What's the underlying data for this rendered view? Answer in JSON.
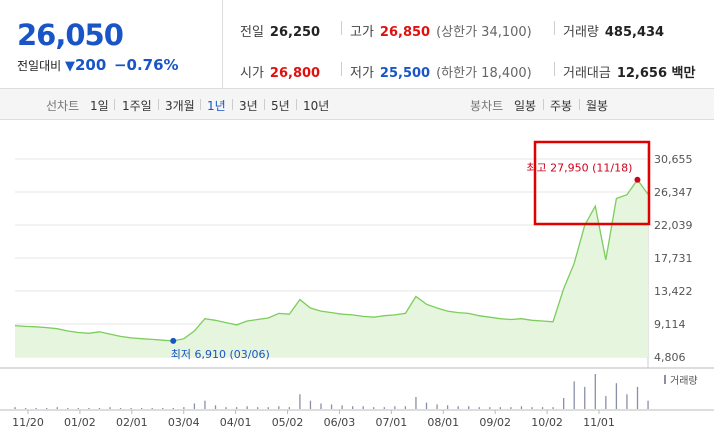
{
  "summary": {
    "price": "26,050",
    "change_label": "전일대비",
    "change_arrow": "▼",
    "change_value": "200",
    "change_pct": "−0.76%"
  },
  "stats": {
    "prev_close_label": "전일",
    "prev_close": "26,250",
    "high_label": "고가",
    "high": "26,850",
    "upper_limit": "(상한가 34,100)",
    "volume_label": "거래량",
    "volume": "485,434",
    "open_label": "시가",
    "open": "26,800",
    "low_label": "저가",
    "low": "25,500",
    "lower_limit": "(하한가 18,400)",
    "amount_label": "거래대금",
    "amount": "12,656 백만"
  },
  "tabs": {
    "line_label": "선차트",
    "line_periods": [
      "1일",
      "1주일",
      "3개월",
      "1년",
      "3년",
      "5년",
      "10년"
    ],
    "active_period": "1년",
    "candle_label": "봉차트",
    "candle_periods": [
      "일봉",
      "주봉",
      "월봉"
    ]
  },
  "colors": {
    "accent_blue": "#1a55c8",
    "up_red": "#e01010",
    "line_green": "#7ccd5c",
    "area_green": "#e6f5dd",
    "annotation_box": "#e00000"
  },
  "chart_data": {
    "type": "area",
    "title": "",
    "xlabel": "",
    "ylabel": "",
    "ylim": [
      4806,
      30655
    ],
    "y_ticks": [
      "30,655",
      "26,347",
      "22,039",
      "17,731",
      "13,422",
      "9,114",
      "4,806"
    ],
    "x_ticks": [
      "11/20",
      "01/02",
      "02/01",
      "03/04",
      "04/01",
      "05/02",
      "06/03",
      "07/01",
      "08/01",
      "09/02",
      "10/02",
      "11/01"
    ],
    "series": [
      {
        "values": [
          8900,
          8800,
          8750,
          8650,
          8500,
          8200,
          8000,
          7900,
          8100,
          7800,
          7500,
          7300,
          7200,
          7100,
          7000,
          6910,
          7200,
          8200,
          9800,
          9600,
          9300,
          9000,
          9500,
          9700,
          9900,
          10500,
          10400,
          12300,
          11200,
          10800,
          10600,
          10400,
          10300,
          10100,
          10000,
          10200,
          10300,
          10500,
          12700,
          11700,
          11200,
          10800,
          10600,
          10500,
          10200,
          10000,
          9800,
          9700,
          9800,
          9600,
          9500,
          9400,
          13700,
          17000,
          22000,
          24500,
          17500,
          25500,
          26000,
          27950,
          26050
        ]
      }
    ],
    "annotations": [
      {
        "label": "최고 27,950 (11/18)",
        "value": 27950,
        "kind": "high"
      },
      {
        "label": "최저 6,910 (03/06)",
        "value": 6910,
        "kind": "low"
      }
    ],
    "volume": {
      "label": "거래량",
      "values": [
        2,
        1,
        1,
        1,
        2,
        1,
        1,
        1,
        1,
        2,
        1,
        1,
        1,
        1,
        1,
        1,
        2,
        6,
        9,
        4,
        2,
        2,
        3,
        2,
        2,
        3,
        2,
        16,
        9,
        6,
        5,
        4,
        3,
        3,
        2,
        2,
        3,
        3,
        13,
        7,
        5,
        4,
        3,
        3,
        2,
        2,
        2,
        2,
        3,
        2,
        2,
        2,
        12,
        30,
        24,
        38,
        14,
        28,
        16,
        24,
        9
      ]
    }
  }
}
